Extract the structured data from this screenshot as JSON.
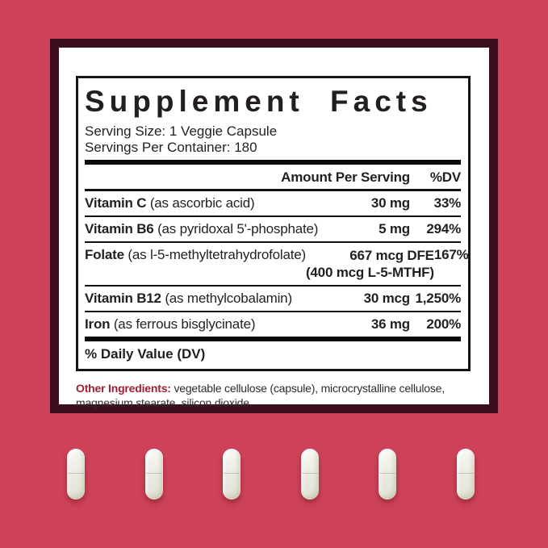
{
  "page": {
    "background_color": "#CE4359",
    "panel_border_color": "#3C0E1C",
    "panel_background": "#FFFFFF"
  },
  "supplement": {
    "title": "Supplement Facts",
    "serving_size": "Serving Size: 1 Veggie Capsule",
    "servings_per_container": "Servings Per Container: 180",
    "columns": {
      "amount": "Amount Per Serving",
      "dv": "%DV"
    },
    "rows": [
      {
        "name": "Vitamin C",
        "detail": "(as ascorbic acid)",
        "amount": "30 mg",
        "dv": "33%"
      },
      {
        "name": "Vitamin B6",
        "detail": "(as pyridoxal 5'-phosphate)",
        "amount": "5 mg",
        "dv": "294%"
      },
      {
        "name": "Folate",
        "detail": "(as l-5-methyltetrahydrofolate)",
        "amount": "667 mcg DFE",
        "amount2": "(400 mcg L-5-MTHF)",
        "dv": "167%"
      },
      {
        "name": "Vitamin B12",
        "detail": "(as methylcobalamin)",
        "amount": "30 mcg",
        "dv": "1,250%"
      },
      {
        "name": "Iron",
        "detail": "(as ferrous bisglycinate)",
        "amount": "36 mg",
        "dv": "200%"
      }
    ],
    "footnote": "% Daily Value (DV)",
    "other_ingredients": {
      "label": "Other Ingredients:",
      "label_color": "#9E2033",
      "text": "vegetable cellulose (capsule), microcrystalline cellulose, magnesium stearate, silicon dioxide."
    }
  },
  "capsules": {
    "count": 6,
    "color": "#EDEDE3"
  }
}
